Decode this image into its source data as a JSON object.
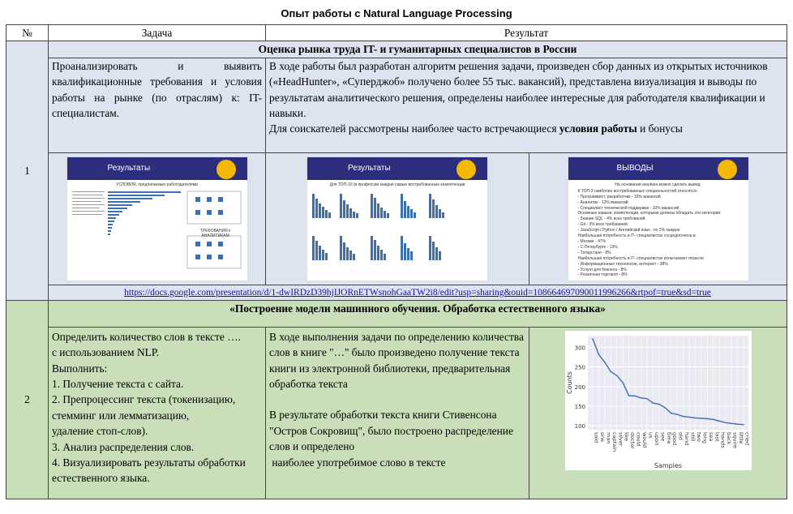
{
  "page_title": "Опыт работы с Natural Language Processing",
  "headers": {
    "num": "№",
    "task": "Задача",
    "result": "Результат"
  },
  "row1": {
    "num": "1",
    "section": "Оценка рынка труда IT- и гуманитарных специалистов в России",
    "task": "Проанализировать и выявить квалификационные требования и условия работы на рынке (по отраслям) к: IT-специалистам.",
    "result_p1": "В ходе работы был разработан алгоритм решения задачи, произведен сбор данных из открытых источников («HeadHunter», «Суперджоб» получено более 55 тыс. вакансий), представлена визуализация и выводы по результатам аналитического решения, определены наиболее интересные для работодателя квалификации и навыки.",
    "result_p2_a": "Для соискателей рассмотрены наиболее часто встречающиеся ",
    "result_p2_b": "условия работы",
    "result_p2_c": " и бонусы",
    "slides": [
      {
        "title": "Результаты",
        "sub1": "УСЛОВИЯ, предлагаемые работодателями",
        "sub2": "ТРЕБОВАНИЯ к АНАЛИТИКАМ"
      },
      {
        "title": "Результаты",
        "sub1": "Для ТОП-10 (в профессии каждая самые востребованные компетенции"
      },
      {
        "title": "ВЫВОДЫ",
        "sub1": "На основании анализа можно сделать вывод:",
        "lines": [
          "К ТОП-3 наиболее востребованных специальностей относятся:",
          "- Программист, разработчик - 33% вакансий",
          "- Аналитик - 12% вакансий",
          "- Специалист технической поддержки - 10% вакансий",
          "Основные навыки, компетенции, которыми должны обладать эти категории:",
          "- Знание SQL - 4% всех требований",
          "- Git - 3% всех требований",
          "- JavaScript / Python / Английский язык - по 2% каждое",
          "Наибольшая потребность в IT- специалистах сосредоточена в:",
          "- Москве - 47%",
          "- С-Петербурге - 13%",
          "- Татарстане - 8%",
          "Наибольшая потребность в IT- специалистах испытывают отрасли",
          "- Информационные технологии, интернет - 38%",
          "- Услуги для бизнеса - 8%",
          "- Розничная торговля - 8%"
        ]
      }
    ],
    "link": "https://docs.google.com/presentation/d/1-dwIRDzD39hjIJORnETWsnohGaaTW2i8/edit?usp=sharing&ouid=108664697090011996266&rtpof=true&sd=true"
  },
  "row2": {
    "num": "2",
    "section": "«Построение модели машинного обучения. Обработка естественного языка»",
    "task_lines": [
      "Определить количество слов в тексте ….",
      "с использованием NLP.",
      "Выполнить:",
      "1. Получение текста с сайта.",
      "2. Препроцессинг текста (токенизацию, стемминг или лемматизацию,",
      "удаление стоп-слов).",
      "3. Анализ распределения слов.",
      "4. Визуализировать результаты обработки естественного языка."
    ],
    "result_p1": "В ходе выполнения задачи по определению количества слов в книге \"…\" было произведено получение текста книги из электронной библиотеки, предварительная обработка текста",
    "result_p2": "В результате обработки текста книги Стивенсона \"Остров Сокровищ\", было построено распределение слов и определено",
    "result_p3": " наиболее употребимое слово в тексте"
  },
  "chart_data": {
    "type": "line",
    "xlabel": "Samples",
    "ylabel": "Counts",
    "ylim": [
      90,
      330
    ],
    "yticks": [
      100,
      150,
      200,
      250,
      300
    ],
    "categories": [
      "said",
      "one",
      "man",
      "captain",
      "silver",
      "like",
      "doctor",
      "could",
      "would",
      "us",
      "upon",
      "see",
      "time",
      "good",
      "old",
      "hand",
      "still",
      "two",
      "long",
      "sea",
      "last",
      "hands",
      "back",
      "squire",
      "little",
      "cried"
    ],
    "values": [
      322,
      282,
      262,
      238,
      228,
      210,
      177,
      176,
      171,
      169,
      158,
      155,
      146,
      132,
      129,
      124,
      122,
      120,
      119,
      118,
      116,
      112,
      108,
      106,
      104,
      103
    ],
    "grid": true,
    "color": "#4c72b0"
  }
}
